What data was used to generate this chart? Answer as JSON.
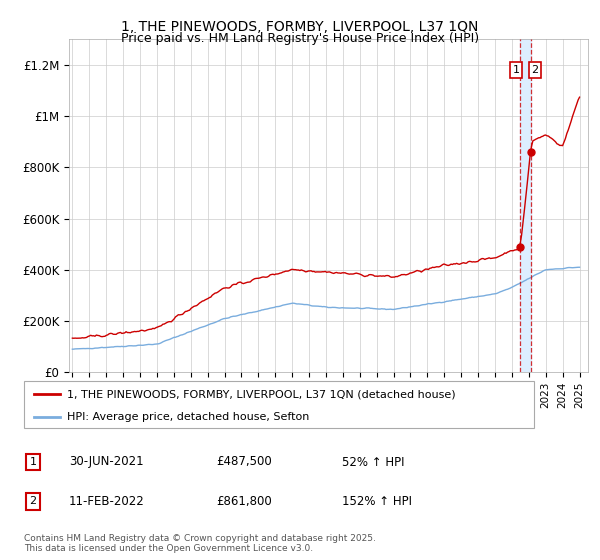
{
  "title": "1, THE PINEWOODS, FORMBY, LIVERPOOL, L37 1QN",
  "subtitle": "Price paid vs. HM Land Registry's House Price Index (HPI)",
  "ylabel_ticks": [
    "£0",
    "£200K",
    "£400K",
    "£600K",
    "£800K",
    "£1M",
    "£1.2M"
  ],
  "ytick_values": [
    0,
    200000,
    400000,
    600000,
    800000,
    1000000,
    1200000
  ],
  "ylim": [
    0,
    1300000
  ],
  "line1_color": "#cc0000",
  "line2_color": "#7aadde",
  "dashed_color": "#cc0000",
  "shade_color": "#ddeeff",
  "legend_label1": "1, THE PINEWOODS, FORMBY, LIVERPOOL, L37 1QN (detached house)",
  "legend_label2": "HPI: Average price, detached house, Sefton",
  "annotation1_label": "1",
  "annotation1_date": "30-JUN-2021",
  "annotation1_price": "£487,500",
  "annotation1_pct": "52% ↑ HPI",
  "annotation2_label": "2",
  "annotation2_date": "11-FEB-2022",
  "annotation2_price": "£861,800",
  "annotation2_pct": "152% ↑ HPI",
  "footer": "Contains HM Land Registry data © Crown copyright and database right 2025.\nThis data is licensed under the Open Government Licence v3.0.",
  "background_color": "#ffffff",
  "grid_color": "#cccccc",
  "sale1_year": 2021.5,
  "sale2_year": 2022.11,
  "sale1_price": 487500,
  "sale2_price": 861800
}
